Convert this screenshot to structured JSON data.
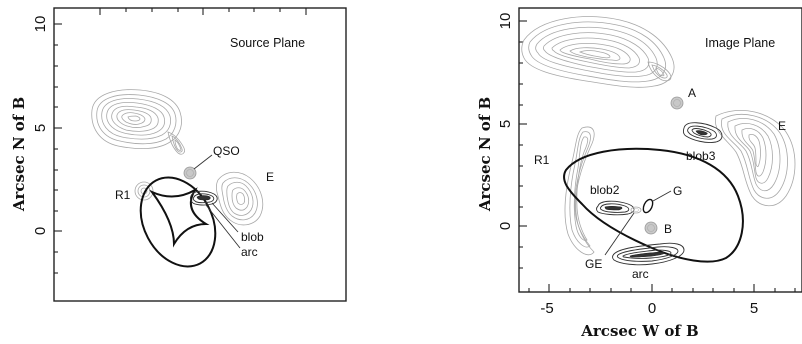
{
  "panels": [
    {
      "title": "Source Plane",
      "y_axis_label": "Arcsec N of B",
      "y_ticks": [
        "10",
        "5",
        "0"
      ],
      "labels": {
        "qso": "QSO",
        "e": "E",
        "r1": "R1",
        "blob": "blob",
        "arc": "arc"
      }
    },
    {
      "title": "Image Plane",
      "x_axis_label": "Arcsec W of B",
      "y_axis_label": "Arcsec N of B",
      "x_ticks": [
        "-5",
        "0",
        "5"
      ],
      "y_ticks": [
        "10",
        "5",
        "0"
      ],
      "labels": {
        "a": "A",
        "b": "B",
        "e": "E",
        "r1": "R1",
        "blob2": "blob2",
        "blob3": "blob3",
        "g": "G",
        "ge": "GE",
        "arc": "arc"
      }
    }
  ],
  "colors": {
    "frame": "#222222",
    "caustic": "#111111",
    "contour_faint": "#a8a8a8",
    "contour_dark": "#333333",
    "quasar_fill": "#c8c8c8"
  }
}
